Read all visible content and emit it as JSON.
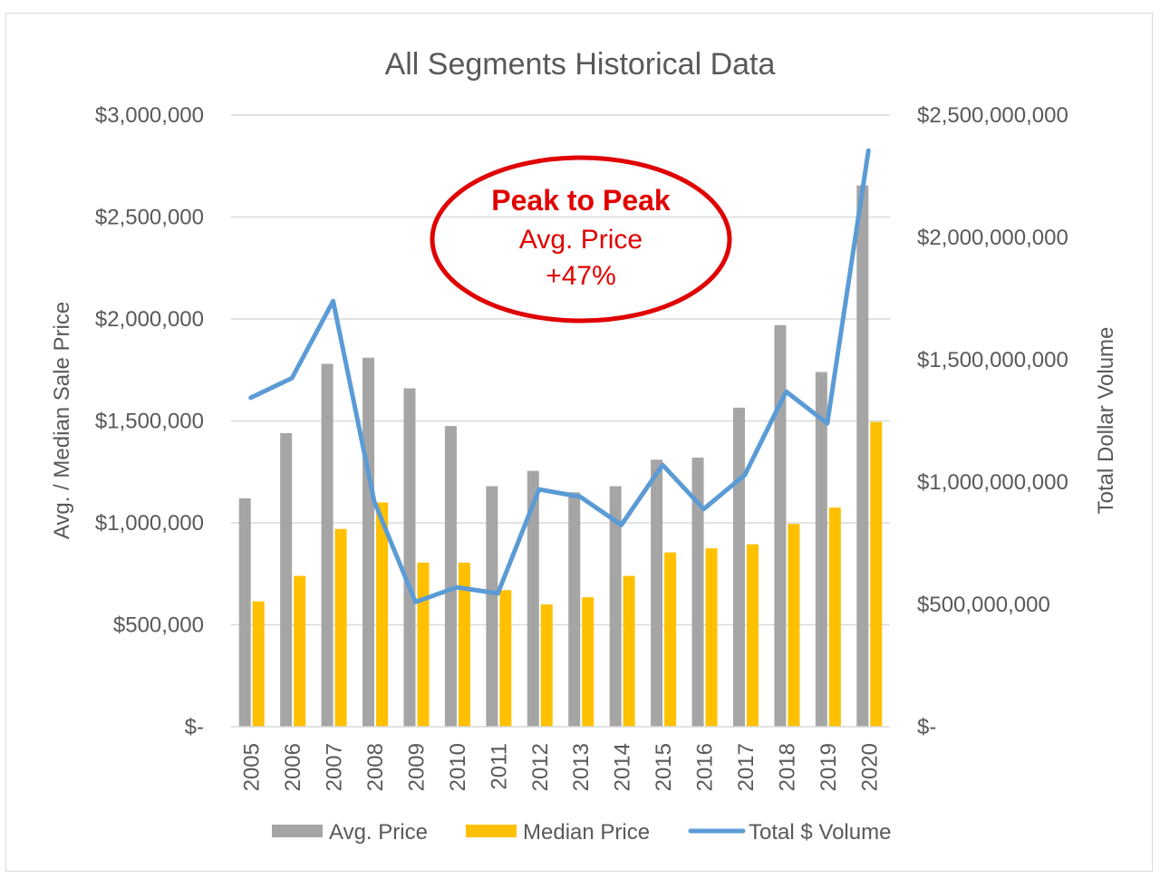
{
  "colors": {
    "avg_price": "#a5a5a5",
    "median_price": "#ffc000",
    "total_volume": "#5b9bd5",
    "annotation": "#e00000",
    "grid": "#d9d9d9",
    "text": "#595959"
  },
  "chart_data": {
    "type": "bar",
    "title": "All Segments Historical Data",
    "categories": [
      "2005",
      "2006",
      "2007",
      "2008",
      "2009",
      "2010",
      "2011",
      "2012",
      "2013",
      "2014",
      "2015",
      "2016",
      "2017",
      "2018",
      "2019",
      "2020"
    ],
    "series": [
      {
        "name": "Avg. Price",
        "type": "bar",
        "axis": "left",
        "values": [
          1120000,
          1440000,
          1780000,
          1810000,
          1660000,
          1475000,
          1180000,
          1255000,
          1150000,
          1180000,
          1310000,
          1320000,
          1565000,
          1970000,
          1740000,
          2655000
        ]
      },
      {
        "name": "Median Price",
        "type": "bar",
        "axis": "left",
        "values": [
          615000,
          740000,
          970000,
          1100000,
          805000,
          805000,
          670000,
          600000,
          635000,
          740000,
          855000,
          875000,
          895000,
          995000,
          1075000,
          1495000
        ]
      },
      {
        "name": "Total $ Volume",
        "type": "line",
        "axis": "right",
        "values": [
          1345000000,
          1425000000,
          1740000000,
          920000000,
          510000000,
          570000000,
          545000000,
          970000000,
          940000000,
          825000000,
          1070000000,
          890000000,
          1030000000,
          1370000000,
          1240000000,
          2355000000
        ]
      }
    ],
    "ylabel": "Avg. / Median Sale Price",
    "y2label": "Total Dollar Volume",
    "ylim": [
      0,
      3000000
    ],
    "y2lim": [
      0,
      2500000000
    ],
    "yticks": [
      0,
      500000,
      1000000,
      1500000,
      2000000,
      2500000,
      3000000
    ],
    "ytick_labels": [
      "$-",
      "$500,000",
      "$1,000,000",
      "$1,500,000",
      "$2,000,000",
      "$2,500,000",
      "$3,000,000"
    ],
    "y2ticks": [
      0,
      500000000,
      1000000000,
      1500000000,
      2000000000,
      2500000000
    ],
    "y2tick_labels": [
      "$-",
      "$500,000,000",
      "$1,000,000,000",
      "$1,500,000,000",
      "$2,000,000,000",
      "$2,500,000,000"
    ],
    "grid": true,
    "legend_position": "bottom",
    "annotation": {
      "lines": [
        "Peak to Peak",
        "Avg. Price",
        "+47%"
      ]
    }
  }
}
